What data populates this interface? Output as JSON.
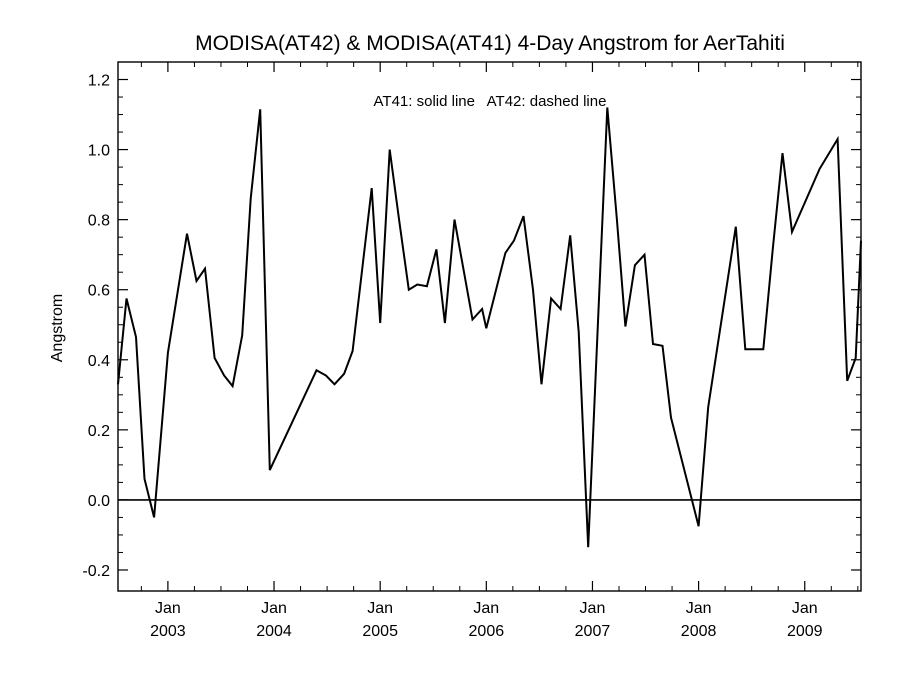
{
  "chart_data": {
    "type": "line",
    "title": "MODISA(AT42) & MODISA(AT41) 4-Day Angstrom for AerTahiti",
    "ylabel": "Angstrom",
    "xlabel": "",
    "annotation": "AT41: solid line   AT42: dashed line",
    "ylim": [
      -0.26,
      1.25
    ],
    "xlim": [
      2002.53,
      2009.53
    ],
    "y_ticks": [
      -0.2,
      0.0,
      0.2,
      0.4,
      0.6,
      0.8,
      1.0,
      1.2
    ],
    "y_tick_labels": [
      "-0.2",
      "0.0",
      "0.2",
      "0.4",
      "0.6",
      "0.8",
      "1.0",
      "1.2"
    ],
    "x_major_ticks": [
      {
        "value": 2003.0,
        "month": "Jan",
        "year": "2003"
      },
      {
        "value": 2004.0,
        "month": "Jan",
        "year": "2004"
      },
      {
        "value": 2005.0,
        "month": "Jan",
        "year": "2005"
      },
      {
        "value": 2006.0,
        "month": "Jan",
        "year": "2006"
      },
      {
        "value": 2007.0,
        "month": "Jan",
        "year": "2007"
      },
      {
        "value": 2008.0,
        "month": "Jan",
        "year": "2008"
      },
      {
        "value": 2009.0,
        "month": "Jan",
        "year": "2009"
      }
    ],
    "grid": false,
    "zero_line": true,
    "series": [
      {
        "style": "solid",
        "x": [
          2002.53,
          2002.61,
          2002.7,
          2002.78,
          2002.87,
          2003.0,
          2003.18,
          2003.27,
          2003.35,
          2003.44,
          2003.53,
          2003.61,
          2003.7,
          2003.78,
          2003.87,
          2003.96,
          2004.4,
          2004.49,
          2004.57,
          2004.66,
          2004.74,
          2004.92,
          2005.0,
          2005.09,
          2005.18,
          2005.27,
          2005.35,
          2005.44,
          2005.53,
          2005.61,
          2005.7,
          2005.79,
          2005.87,
          2005.96,
          2006.0,
          2006.18,
          2006.26,
          2006.35,
          2006.44,
          2006.52,
          2006.61,
          2006.7,
          2006.79,
          2006.87,
          2006.96,
          2007.14,
          2007.23,
          2007.31,
          2007.4,
          2007.49,
          2007.57,
          2007.66,
          2007.74,
          2008.0,
          2008.09,
          2008.35,
          2008.44,
          2008.61,
          2008.7,
          2008.79,
          2008.88,
          2009.14,
          2009.31,
          2009.4,
          2009.48,
          2009.53
        ],
        "values": [
          0.33,
          0.575,
          0.465,
          0.06,
          -0.05,
          0.42,
          0.76,
          0.625,
          0.66,
          0.405,
          0.355,
          0.325,
          0.47,
          0.86,
          1.115,
          0.085,
          0.37,
          0.355,
          0.33,
          0.36,
          0.425,
          0.89,
          0.505,
          1.0,
          0.795,
          0.6,
          0.615,
          0.61,
          0.715,
          0.505,
          0.8,
          0.65,
          0.515,
          0.545,
          0.49,
          0.705,
          0.74,
          0.81,
          0.6,
          0.33,
          0.575,
          0.545,
          0.755,
          0.48,
          -0.135,
          1.12,
          0.8,
          0.495,
          0.67,
          0.7,
          0.445,
          0.44,
          0.235,
          -0.075,
          0.265,
          0.78,
          0.43,
          0.43,
          0.72,
          0.99,
          0.765,
          0.945,
          1.03,
          0.34,
          0.405,
          0.74
        ]
      }
    ]
  }
}
